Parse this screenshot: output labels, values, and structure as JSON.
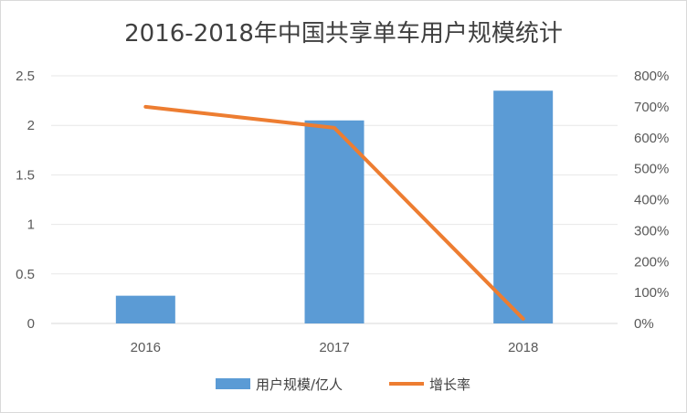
{
  "chart_data": {
    "type": "bar",
    "title": "2016-2018年中国共享单车用户规模统计",
    "categories": [
      "2016",
      "2017",
      "2018"
    ],
    "series": [
      {
        "name": "用户规模/亿人",
        "type": "bar",
        "axis": "left",
        "color": "#5b9bd5",
        "values": [
          0.28,
          2.05,
          2.35
        ]
      },
      {
        "name": "增长率",
        "type": "line",
        "axis": "right",
        "color": "#ed7d31",
        "values": [
          7.0,
          6.32,
          0.15
        ]
      }
    ],
    "y_left": {
      "min": 0,
      "max": 2.5,
      "ticks": [
        "0",
        "0.5",
        "1",
        "1.5",
        "2",
        "2.5"
      ]
    },
    "y_right": {
      "min": 0,
      "max": 8,
      "ticks": [
        "0%",
        "100%",
        "200%",
        "300%",
        "400%",
        "500%",
        "600%",
        "700%",
        "800%"
      ]
    },
    "legend_position": "bottom",
    "grid": true
  }
}
